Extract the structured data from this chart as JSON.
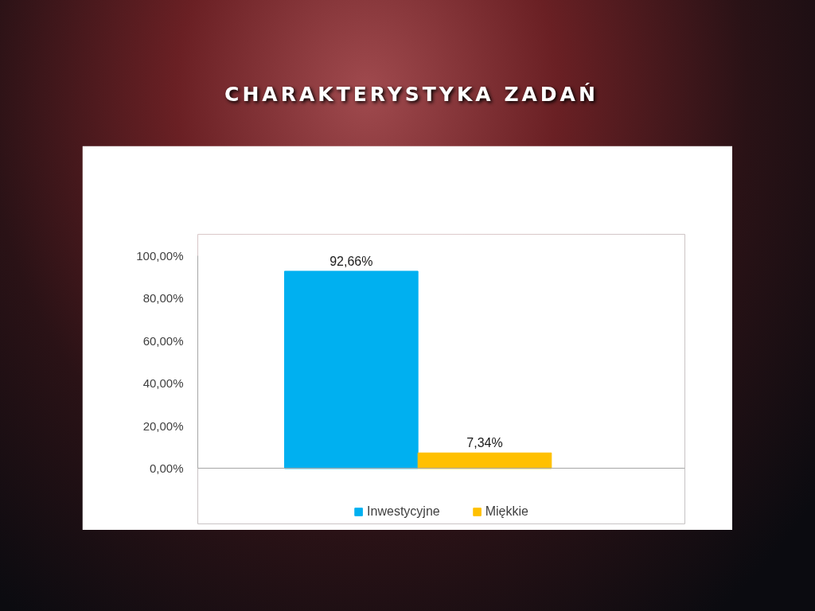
{
  "chart_data": {
    "type": "bar",
    "title": "CHARAKTERYSTYKA ZADAŃ",
    "categories": [
      null,
      null
    ],
    "series": [
      {
        "name": "Inwestycyjne",
        "color": "#00b0f0",
        "values": [
          92.66,
          null
        ],
        "value_labels": [
          "92,66%",
          null
        ]
      },
      {
        "name": "Miękkie",
        "color": "#ffc000",
        "values": [
          null,
          7.34
        ],
        "value_labels": [
          null,
          "7,34%"
        ]
      }
    ],
    "ylim": [
      0,
      100
    ],
    "yticks": [
      {
        "value": 0,
        "label": "0,00%"
      },
      {
        "value": 20,
        "label": "20,00%"
      },
      {
        "value": 40,
        "label": "40,00%"
      },
      {
        "value": 60,
        "label": "60,00%"
      },
      {
        "value": 80,
        "label": "80,00%"
      },
      {
        "value": 100,
        "label": "100,00%"
      }
    ],
    "grid": false,
    "legend": "bottom"
  }
}
